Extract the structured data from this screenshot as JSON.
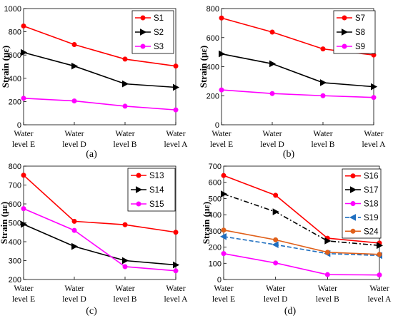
{
  "chart_data": [
    {
      "panel": "(a)",
      "type": "line",
      "categories": [
        "Water level E",
        "Water level D",
        "Water level B",
        "Water level A"
      ],
      "ylabel": "Strain (με)",
      "ylim": [
        0,
        1000
      ],
      "yticks": [
        0,
        200,
        400,
        600,
        800,
        1000
      ],
      "legend_position": "top-right",
      "series": [
        {
          "name": "S1",
          "color": "#ff0000",
          "marker": "circle",
          "dash": "solid",
          "values": [
            850,
            690,
            565,
            505
          ]
        },
        {
          "name": "S2",
          "color": "#000000",
          "marker": "triangle-right",
          "dash": "solid",
          "values": [
            622,
            505,
            352,
            322
          ]
        },
        {
          "name": "S3",
          "color": "#ff00ff",
          "marker": "circle",
          "dash": "solid",
          "values": [
            228,
            205,
            160,
            128
          ]
        }
      ]
    },
    {
      "panel": "(b)",
      "type": "line",
      "categories": [
        "Water level E",
        "Water level D",
        "Water level B",
        "Water level A"
      ],
      "ylabel": "Strain (με)",
      "ylim": [
        0,
        800
      ],
      "yticks": [
        0,
        200,
        400,
        600,
        800
      ],
      "legend_position": "top-right",
      "series": [
        {
          "name": "S7",
          "color": "#ff0000",
          "marker": "circle",
          "dash": "solid",
          "values": [
            735,
            638,
            522,
            480
          ]
        },
        {
          "name": "S8",
          "color": "#000000",
          "marker": "triangle-right",
          "dash": "solid",
          "values": [
            488,
            420,
            290,
            262
          ]
        },
        {
          "name": "S9",
          "color": "#ff00ff",
          "marker": "circle",
          "dash": "solid",
          "values": [
            240,
            215,
            200,
            188
          ]
        }
      ]
    },
    {
      "panel": "(c)",
      "type": "line",
      "categories": [
        "Water level E",
        "Water level D",
        "Water level B",
        "Water level A"
      ],
      "ylabel": "Strain (με)",
      "ylim": [
        200,
        800
      ],
      "yticks": [
        200,
        300,
        400,
        500,
        600,
        700,
        800
      ],
      "legend_position": "top-right",
      "series": [
        {
          "name": "S13",
          "color": "#ff0000",
          "marker": "circle",
          "dash": "solid",
          "values": [
            752,
            508,
            490,
            450
          ]
        },
        {
          "name": "S14",
          "color": "#000000",
          "marker": "triangle-right",
          "dash": "solid",
          "values": [
            492,
            375,
            300,
            277
          ]
        },
        {
          "name": "S15",
          "color": "#ff00ff",
          "marker": "circle",
          "dash": "solid",
          "values": [
            575,
            460,
            268,
            246
          ]
        }
      ]
    },
    {
      "panel": "(d)",
      "type": "line",
      "categories": [
        "Water level E",
        "Water level D",
        "Water level B",
        "Water level A"
      ],
      "ylabel": "Strain (με)",
      "ylim": [
        0,
        700
      ],
      "yticks": [
        0,
        100,
        200,
        300,
        400,
        500,
        600,
        700
      ],
      "legend_position": "top-right",
      "series": [
        {
          "name": "S16",
          "color": "#ff0000",
          "marker": "circle",
          "dash": "solid",
          "values": [
            642,
            520,
            255,
            225
          ]
        },
        {
          "name": "S17",
          "color": "#000000",
          "marker": "triangle-right",
          "dash": "dashdot",
          "values": [
            528,
            418,
            238,
            210
          ]
        },
        {
          "name": "S18",
          "color": "#ff00ff",
          "marker": "circle",
          "dash": "solid",
          "values": [
            160,
            102,
            30,
            28
          ]
        },
        {
          "name": "S19",
          "color": "#1f6fc0",
          "marker": "triangle-left",
          "dash": "dashed",
          "values": [
            265,
            215,
            160,
            148
          ]
        },
        {
          "name": "S24",
          "color": "#e0601a",
          "marker": "circle",
          "dash": "solid",
          "values": [
            305,
            245,
            168,
            155
          ]
        }
      ]
    }
  ]
}
